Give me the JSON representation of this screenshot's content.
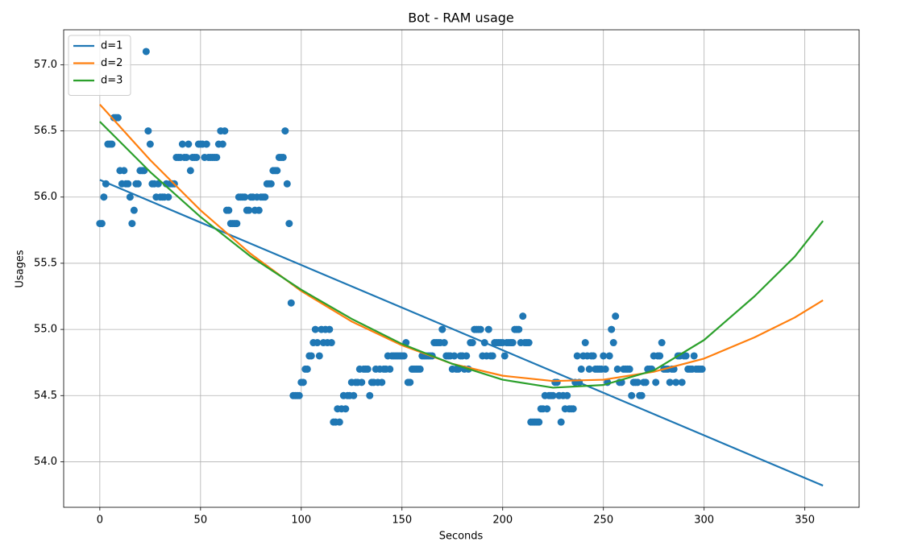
{
  "chart_data": {
    "type": "line",
    "title": "Bot - RAM usage",
    "x_label": "Seconds",
    "y_label": "Usages",
    "xlim": [
      -17.95,
      376.95
    ],
    "ylim": [
      53.656,
      57.264
    ],
    "xticks": [
      0,
      50,
      100,
      150,
      200,
      250,
      300,
      350
    ],
    "yticks": [
      {
        "value": 54,
        "label": "54.0"
      },
      54.5,
      {
        "value": 55,
        "label": "55.0"
      },
      55.5,
      {
        "value": 56,
        "label": "56.0"
      },
      56.5,
      {
        "value": 57,
        "label": "57.0"
      }
    ],
    "grid": true,
    "legend": "upper left",
    "scatter": {
      "color": "#1f77b4",
      "x": [
        0,
        1,
        2,
        3,
        4,
        5,
        6,
        7,
        8,
        9,
        10,
        11,
        12,
        13,
        14,
        15,
        16,
        17,
        18,
        19,
        20,
        21,
        22,
        23,
        24,
        25,
        26,
        27,
        28,
        29,
        30,
        31,
        32,
        33,
        34,
        35,
        36,
        37,
        38,
        39,
        40,
        41,
        42,
        43,
        44,
        45,
        46,
        47,
        48,
        49,
        50,
        51,
        52,
        53,
        54,
        55,
        56,
        57,
        58,
        59,
        60,
        61,
        62,
        63,
        64,
        65,
        66,
        67,
        68,
        69,
        70,
        71,
        72,
        73,
        74,
        75,
        76,
        77,
        78,
        79,
        80,
        81,
        82,
        83,
        84,
        85,
        86,
        87,
        88,
        89,
        90,
        91,
        92,
        93,
        94,
        95,
        96,
        97,
        98,
        99,
        100,
        101,
        102,
        103,
        104,
        105,
        106,
        107,
        108,
        109,
        110,
        111,
        112,
        113,
        114,
        115,
        116,
        117,
        118,
        119,
        120,
        121,
        122,
        123,
        124,
        125,
        126,
        127,
        128,
        129,
        130,
        131,
        132,
        133,
        134,
        135,
        136,
        137,
        138,
        139,
        140,
        141,
        142,
        143,
        144,
        145,
        146,
        147,
        148,
        149,
        150,
        151,
        152,
        153,
        154,
        155,
        156,
        157,
        158,
        159,
        160,
        161,
        162,
        163,
        164,
        165,
        166,
        167,
        168,
        169,
        170,
        171,
        172,
        173,
        174,
        175,
        176,
        177,
        178,
        179,
        180,
        181,
        182,
        183,
        184,
        185,
        186,
        187,
        188,
        189,
        190,
        191,
        192,
        193,
        194,
        195,
        196,
        197,
        198,
        199,
        200,
        201,
        202,
        203,
        204,
        205,
        206,
        207,
        208,
        209,
        210,
        211,
        212,
        213,
        214,
        215,
        216,
        217,
        218,
        219,
        220,
        221,
        222,
        223,
        224,
        225,
        226,
        227,
        228,
        229,
        230,
        231,
        232,
        233,
        234,
        235,
        236,
        237,
        238,
        239,
        240,
        241,
        242,
        243,
        244,
        245,
        246,
        247,
        248,
        249,
        250,
        251,
        252,
        253,
        254,
        255,
        256,
        257,
        258,
        259,
        260,
        261,
        262,
        263,
        264,
        265,
        266,
        267,
        268,
        269,
        270,
        271,
        272,
        273,
        274,
        275,
        276,
        277,
        278,
        279,
        280,
        281,
        282,
        283,
        284,
        285,
        286,
        287,
        288,
        289,
        290,
        291,
        292,
        293,
        294,
        295,
        296,
        297,
        298,
        299
      ],
      "values": [
        55.8,
        55.8,
        56.0,
        56.1,
        56.4,
        56.4,
        56.4,
        56.6,
        56.6,
        56.6,
        56.2,
        56.1,
        56.2,
        56.1,
        56.1,
        56.0,
        55.8,
        55.9,
        56.1,
        56.1,
        56.2,
        56.2,
        56.2,
        57.1,
        56.5,
        56.4,
        56.1,
        56.1,
        56.0,
        56.1,
        56.0,
        56.0,
        56.0,
        56.1,
        56.0,
        56.1,
        56.1,
        56.1,
        56.3,
        56.3,
        56.3,
        56.4,
        56.3,
        56.3,
        56.4,
        56.2,
        56.3,
        56.3,
        56.3,
        56.4,
        56.4,
        56.4,
        56.3,
        56.4,
        56.3,
        56.3,
        56.3,
        56.3,
        56.3,
        56.4,
        56.5,
        56.4,
        56.5,
        55.9,
        55.9,
        55.8,
        55.8,
        55.8,
        55.8,
        56.0,
        56.0,
        56.0,
        56.0,
        55.9,
        55.9,
        56.0,
        56.0,
        55.9,
        56.0,
        55.9,
        56.0,
        56.0,
        56.0,
        56.1,
        56.1,
        56.1,
        56.2,
        56.2,
        56.2,
        56.3,
        56.3,
        56.3,
        56.5,
        56.1,
        55.8,
        55.2,
        54.5,
        54.5,
        54.5,
        54.5,
        54.6,
        54.6,
        54.7,
        54.7,
        54.8,
        54.8,
        54.9,
        55.0,
        54.9,
        54.8,
        55.0,
        54.9,
        55.0,
        54.9,
        55.0,
        54.9,
        54.3,
        54.3,
        54.4,
        54.3,
        54.4,
        54.5,
        54.4,
        54.5,
        54.5,
        54.6,
        54.5,
        54.6,
        54.6,
        54.7,
        54.6,
        54.7,
        54.7,
        54.7,
        54.5,
        54.6,
        54.6,
        54.7,
        54.6,
        54.7,
        54.6,
        54.7,
        54.7,
        54.8,
        54.7,
        54.8,
        54.8,
        54.8,
        54.8,
        54.8,
        54.8,
        54.8,
        54.9,
        54.6,
        54.6,
        54.7,
        54.7,
        54.7,
        54.7,
        54.7,
        54.8,
        54.8,
        54.8,
        54.8,
        54.8,
        54.8,
        54.9,
        54.9,
        54.9,
        54.9,
        55.0,
        54.9,
        54.8,
        54.8,
        54.8,
        54.7,
        54.8,
        54.7,
        54.7,
        54.8,
        54.8,
        54.7,
        54.8,
        54.7,
        54.9,
        54.9,
        55.0,
        55.0,
        55.0,
        55.0,
        54.8,
        54.9,
        54.8,
        55.0,
        54.8,
        54.8,
        54.9,
        54.9,
        54.9,
        54.9,
        54.9,
        54.8,
        54.9,
        54.9,
        54.9,
        54.9,
        55.0,
        55.0,
        55.0,
        54.9,
        55.1,
        54.9,
        54.9,
        54.9,
        54.3,
        54.3,
        54.3,
        54.3,
        54.3,
        54.4,
        54.4,
        54.5,
        54.4,
        54.5,
        54.5,
        54.5,
        54.6,
        54.6,
        54.5,
        54.3,
        54.5,
        54.4,
        54.5,
        54.4,
        54.4,
        54.4,
        54.6,
        54.8,
        54.6,
        54.7,
        54.8,
        54.9,
        54.8,
        54.7,
        54.8,
        54.8,
        54.7,
        54.7,
        54.7,
        54.7,
        54.8,
        54.7,
        54.6,
        54.8,
        55.0,
        54.9,
        55.1,
        54.7,
        54.6,
        54.6,
        54.7,
        54.7,
        54.7,
        54.7,
        54.5,
        54.6,
        54.6,
        54.6,
        54.5,
        54.5,
        54.6,
        54.6,
        54.7,
        54.7,
        54.7,
        54.8,
        54.6,
        54.8,
        54.8,
        54.9,
        54.7,
        54.7,
        54.7,
        54.6,
        54.7,
        54.7,
        54.6,
        54.8,
        54.8,
        54.6,
        54.8,
        54.8,
        54.7,
        54.7,
        54.7,
        54.8,
        54.7,
        54.7,
        54.7,
        54.7
      ]
    },
    "series": [
      {
        "name": "d=1",
        "color": "#1f77b4",
        "x": [
          0,
          359
        ],
        "values": [
          56.13,
          53.82
        ]
      },
      {
        "name": "d=2",
        "color": "#ff7f0e",
        "x": [
          0,
          25,
          50,
          75,
          100,
          125,
          150,
          175,
          200,
          225,
          250,
          275,
          300,
          325,
          345,
          359
        ],
        "values": [
          56.7,
          56.28,
          55.9,
          55.57,
          55.29,
          55.06,
          54.88,
          54.74,
          54.65,
          54.61,
          54.62,
          54.68,
          54.78,
          54.94,
          55.09,
          55.22
        ]
      },
      {
        "name": "d=3",
        "color": "#2ca02c",
        "x": [
          0,
          25,
          50,
          75,
          100,
          125,
          150,
          175,
          200,
          225,
          250,
          275,
          300,
          325,
          345,
          359
        ],
        "values": [
          56.57,
          56.19,
          55.85,
          55.55,
          55.3,
          55.08,
          54.89,
          54.74,
          54.62,
          54.56,
          54.58,
          54.69,
          54.92,
          55.25,
          55.55,
          55.82
        ]
      }
    ]
  }
}
